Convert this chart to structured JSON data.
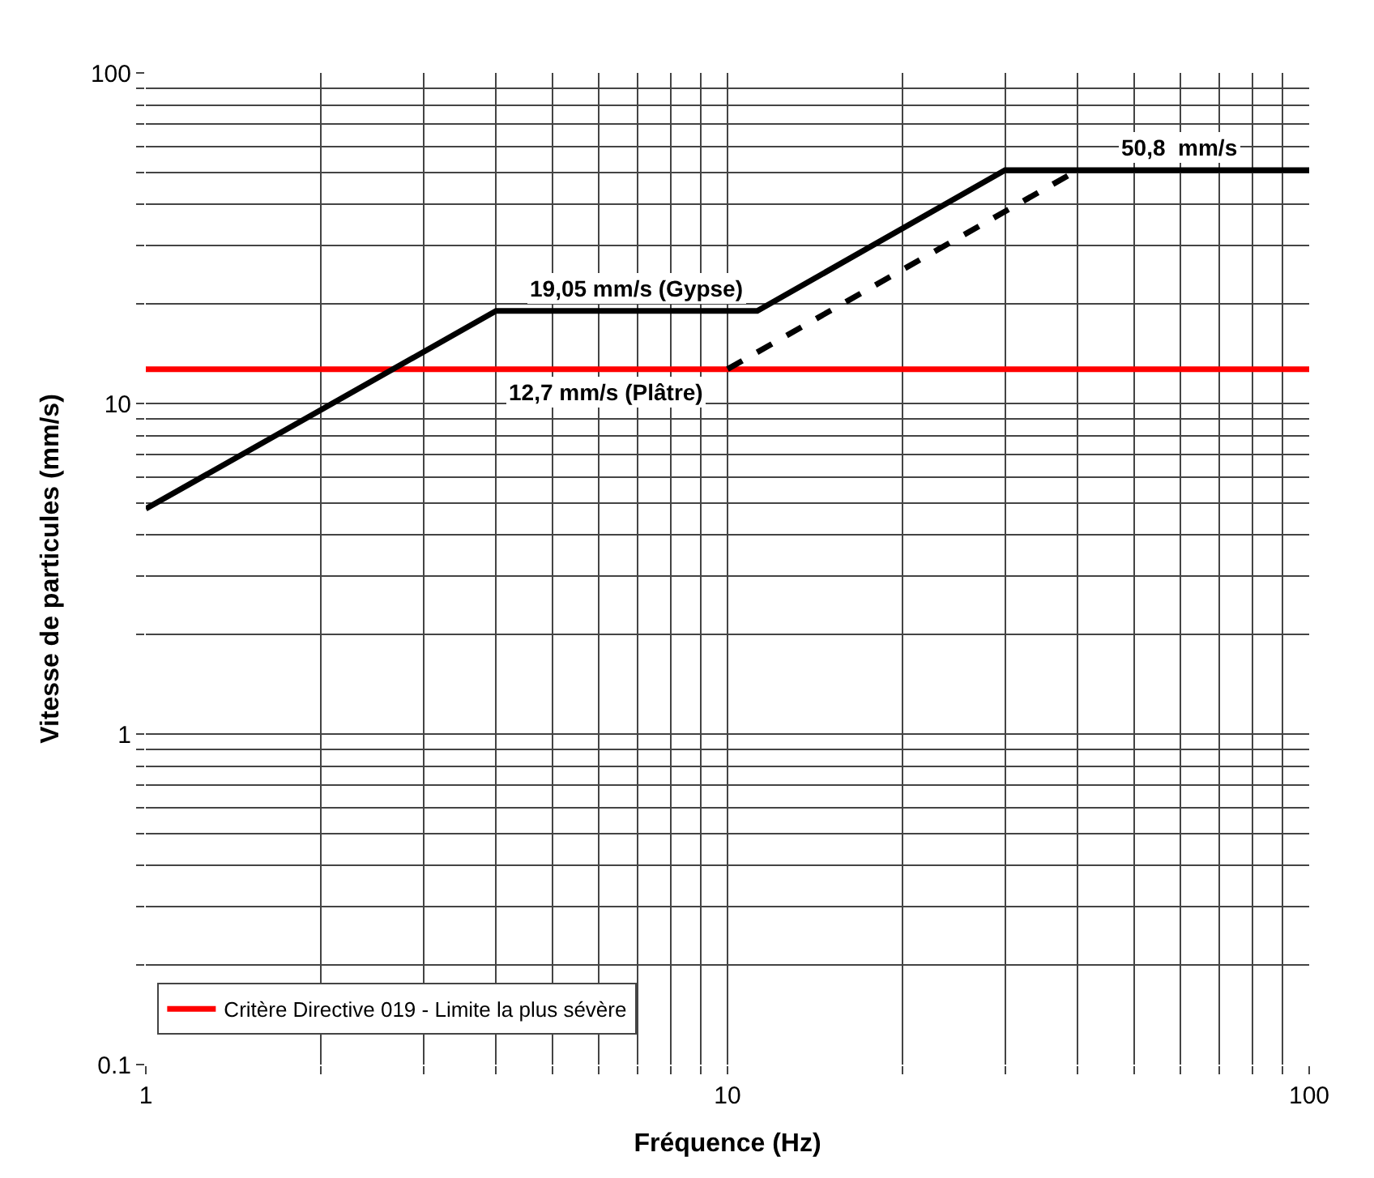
{
  "chart_data": {
    "type": "line",
    "xlabel": "Fréquence (Hz)",
    "ylabel": "Vitesse de particules (mm/s)",
    "log": "xy",
    "grid": true,
    "legend": "bottom left",
    "marker": "none",
    "xlim": [
      1,
      100
    ],
    "xticks": [
      1,
      {
        "value": 2,
        "label": null
      },
      {
        "value": 3,
        "label": null
      },
      {
        "value": 4,
        "label": null
      },
      {
        "value": 5,
        "label": null
      },
      {
        "value": 6,
        "label": null
      },
      {
        "value": 7,
        "label": null
      },
      {
        "value": 8,
        "label": null
      },
      {
        "value": 9,
        "label": null
      },
      10,
      {
        "value": 20,
        "label": null
      },
      {
        "value": 30,
        "label": null
      },
      {
        "value": 40,
        "label": null
      },
      {
        "value": 50,
        "label": null
      },
      {
        "value": 60,
        "label": null
      },
      {
        "value": 70,
        "label": null
      },
      {
        "value": 80,
        "label": null
      },
      {
        "value": 90,
        "label": null
      },
      100
    ],
    "ylim": [
      0.1,
      100
    ],
    "yticks": [
      0.1,
      {
        "value": 0.2,
        "label": null
      },
      {
        "value": 0.3,
        "label": null
      },
      {
        "value": 0.4,
        "label": null
      },
      {
        "value": 0.5,
        "label": null
      },
      {
        "value": 0.6,
        "label": null
      },
      {
        "value": 0.7,
        "label": null
      },
      {
        "value": 0.8,
        "label": null
      },
      {
        "value": 0.9,
        "label": null
      },
      1,
      {
        "value": 2,
        "label": null
      },
      {
        "value": 3,
        "label": null
      },
      {
        "value": 4,
        "label": null
      },
      {
        "value": 5,
        "label": null
      },
      {
        "value": 6,
        "label": null
      },
      {
        "value": 7,
        "label": null
      },
      {
        "value": 8,
        "label": null
      },
      {
        "value": 9,
        "label": null
      },
      10,
      {
        "value": 20,
        "label": null
      },
      {
        "value": 30,
        "label": null
      },
      {
        "value": 40,
        "label": null
      },
      {
        "value": 50,
        "label": null
      },
      {
        "value": 60,
        "label": null
      },
      {
        "value": 70,
        "label": null
      },
      {
        "value": 80,
        "label": null
      },
      {
        "value": 90,
        "label": null
      },
      100
    ],
    "series": [
      {
        "name": "Critère Directive 019 - Limite la plus sévère",
        "color": "#ff0000",
        "x": [
          1,
          100
        ],
        "values": [
          12.7,
          12.7
        ],
        "line_style": "solid"
      },
      {
        "color": "#000000",
        "x": [
          1,
          4,
          11.25,
          30,
          100
        ],
        "values": [
          4.8,
          19.05,
          19.05,
          50.8,
          50.8
        ],
        "line_style": "solid"
      },
      {
        "color": "#000000",
        "x": [
          10,
          40
        ],
        "values": [
          12.7,
          50.8
        ],
        "line_style": "dashed"
      }
    ],
    "annotations": [
      {
        "text": "19,05 mm/s (Gypse)",
        "x": 7,
        "y": 19.05
      },
      {
        "text": "12,7 mm/s (Plâtre)",
        "x": 6.2,
        "y": 12.7
      },
      {
        "text": "50,8  mm/s",
        "x": 60,
        "y": 50.8
      }
    ]
  }
}
